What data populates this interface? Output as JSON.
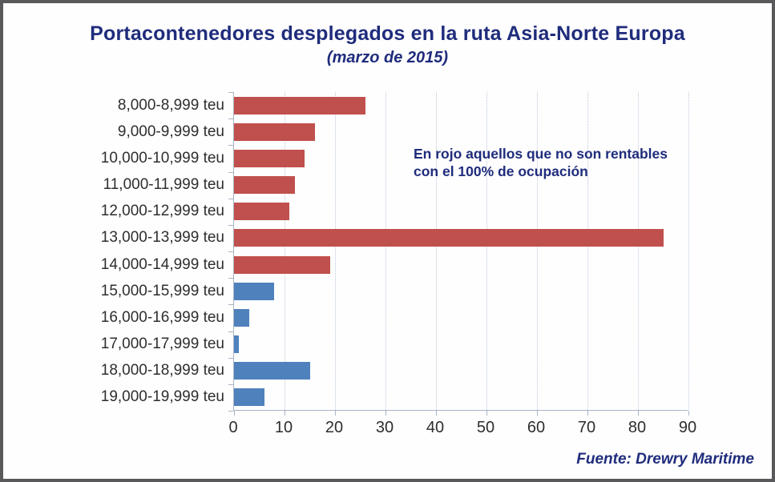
{
  "title": "Portacontenedores desplegados en la ruta Asia-Norte Europa",
  "subtitle": "(marzo de 2015)",
  "annotation": {
    "line1": "En rojo aquellos que no son rentables",
    "line2": "con el 100% de ocupación"
  },
  "source": "Fuente: Drewry Maritime",
  "colors": {
    "unprofitable_red": "#C0504D",
    "profitable_blue": "#4F81BD",
    "navy_text": "#1F2C7C",
    "gridline": "#BCC9DA",
    "axis": "#A8B4C4",
    "frame_border": "#59595B"
  },
  "chart_data": {
    "type": "bar",
    "orientation": "horizontal",
    "title": "Portacontenedores desplegados en la ruta Asia-Norte Europa (marzo de 2015)",
    "categories": [
      "8,000-8,999 teu",
      "9,000-9,999 teu",
      "10,000-10,999 teu",
      "11,000-11,999 teu",
      "12,000-12,999 teu",
      "13,000-13,999 teu",
      "14,000-14,999 teu",
      "15,000-15,999 teu",
      "16,000-16,999 teu",
      "17,000-17,999 teu",
      "18,000-18,999 teu",
      "19,000-19,999 teu"
    ],
    "values": [
      26,
      16,
      14,
      12,
      11,
      85,
      19,
      8,
      3,
      1,
      15,
      6
    ],
    "bar_colors": [
      "#C0504D",
      "#C0504D",
      "#C0504D",
      "#C0504D",
      "#C0504D",
      "#C0504D",
      "#C0504D",
      "#4F81BD",
      "#4F81BD",
      "#4F81BD",
      "#4F81BD",
      "#4F81BD"
    ],
    "xlabel": "",
    "ylabel": "",
    "xlim": [
      0,
      90
    ],
    "xticks": [
      0,
      10,
      20,
      30,
      40,
      50,
      60,
      70,
      80,
      90
    ],
    "grid": "vertical-dotted",
    "legend": "none"
  }
}
